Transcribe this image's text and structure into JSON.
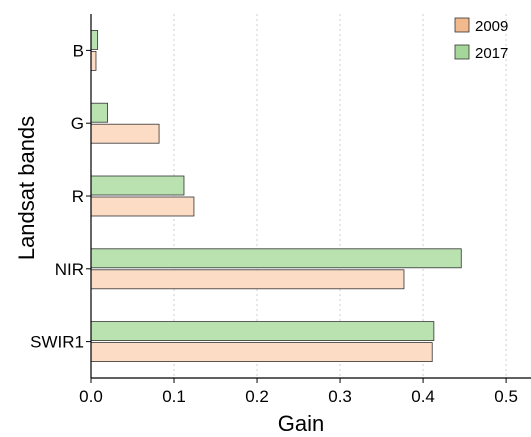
{
  "chart_data": {
    "type": "bar",
    "orientation": "horizontal",
    "title": "",
    "xlabel": "Gain",
    "ylabel": "Landsat bands",
    "categories": [
      "B",
      "G",
      "R",
      "NIR",
      "SWIR1"
    ],
    "series": [
      {
        "name": "2009",
        "color": "#fcdcc4",
        "legend_color": "#f2b98c",
        "values": [
          0.006,
          0.082,
          0.124,
          0.377,
          0.411
        ]
      },
      {
        "name": "2017",
        "color": "#b9e2b0",
        "legend_color": "#a5d79a",
        "values": [
          0.008,
          0.02,
          0.112,
          0.446,
          0.413
        ]
      }
    ],
    "xlim": [
      0,
      0.53
    ],
    "xticks": [
      0.0,
      0.1,
      0.2,
      0.3,
      0.4,
      0.5
    ],
    "xtick_labels": [
      "0.0",
      "0.1",
      "0.2",
      "0.3",
      "0.4",
      "0.5"
    ],
    "grid": "x-dotted",
    "legend_position": "top-right"
  }
}
